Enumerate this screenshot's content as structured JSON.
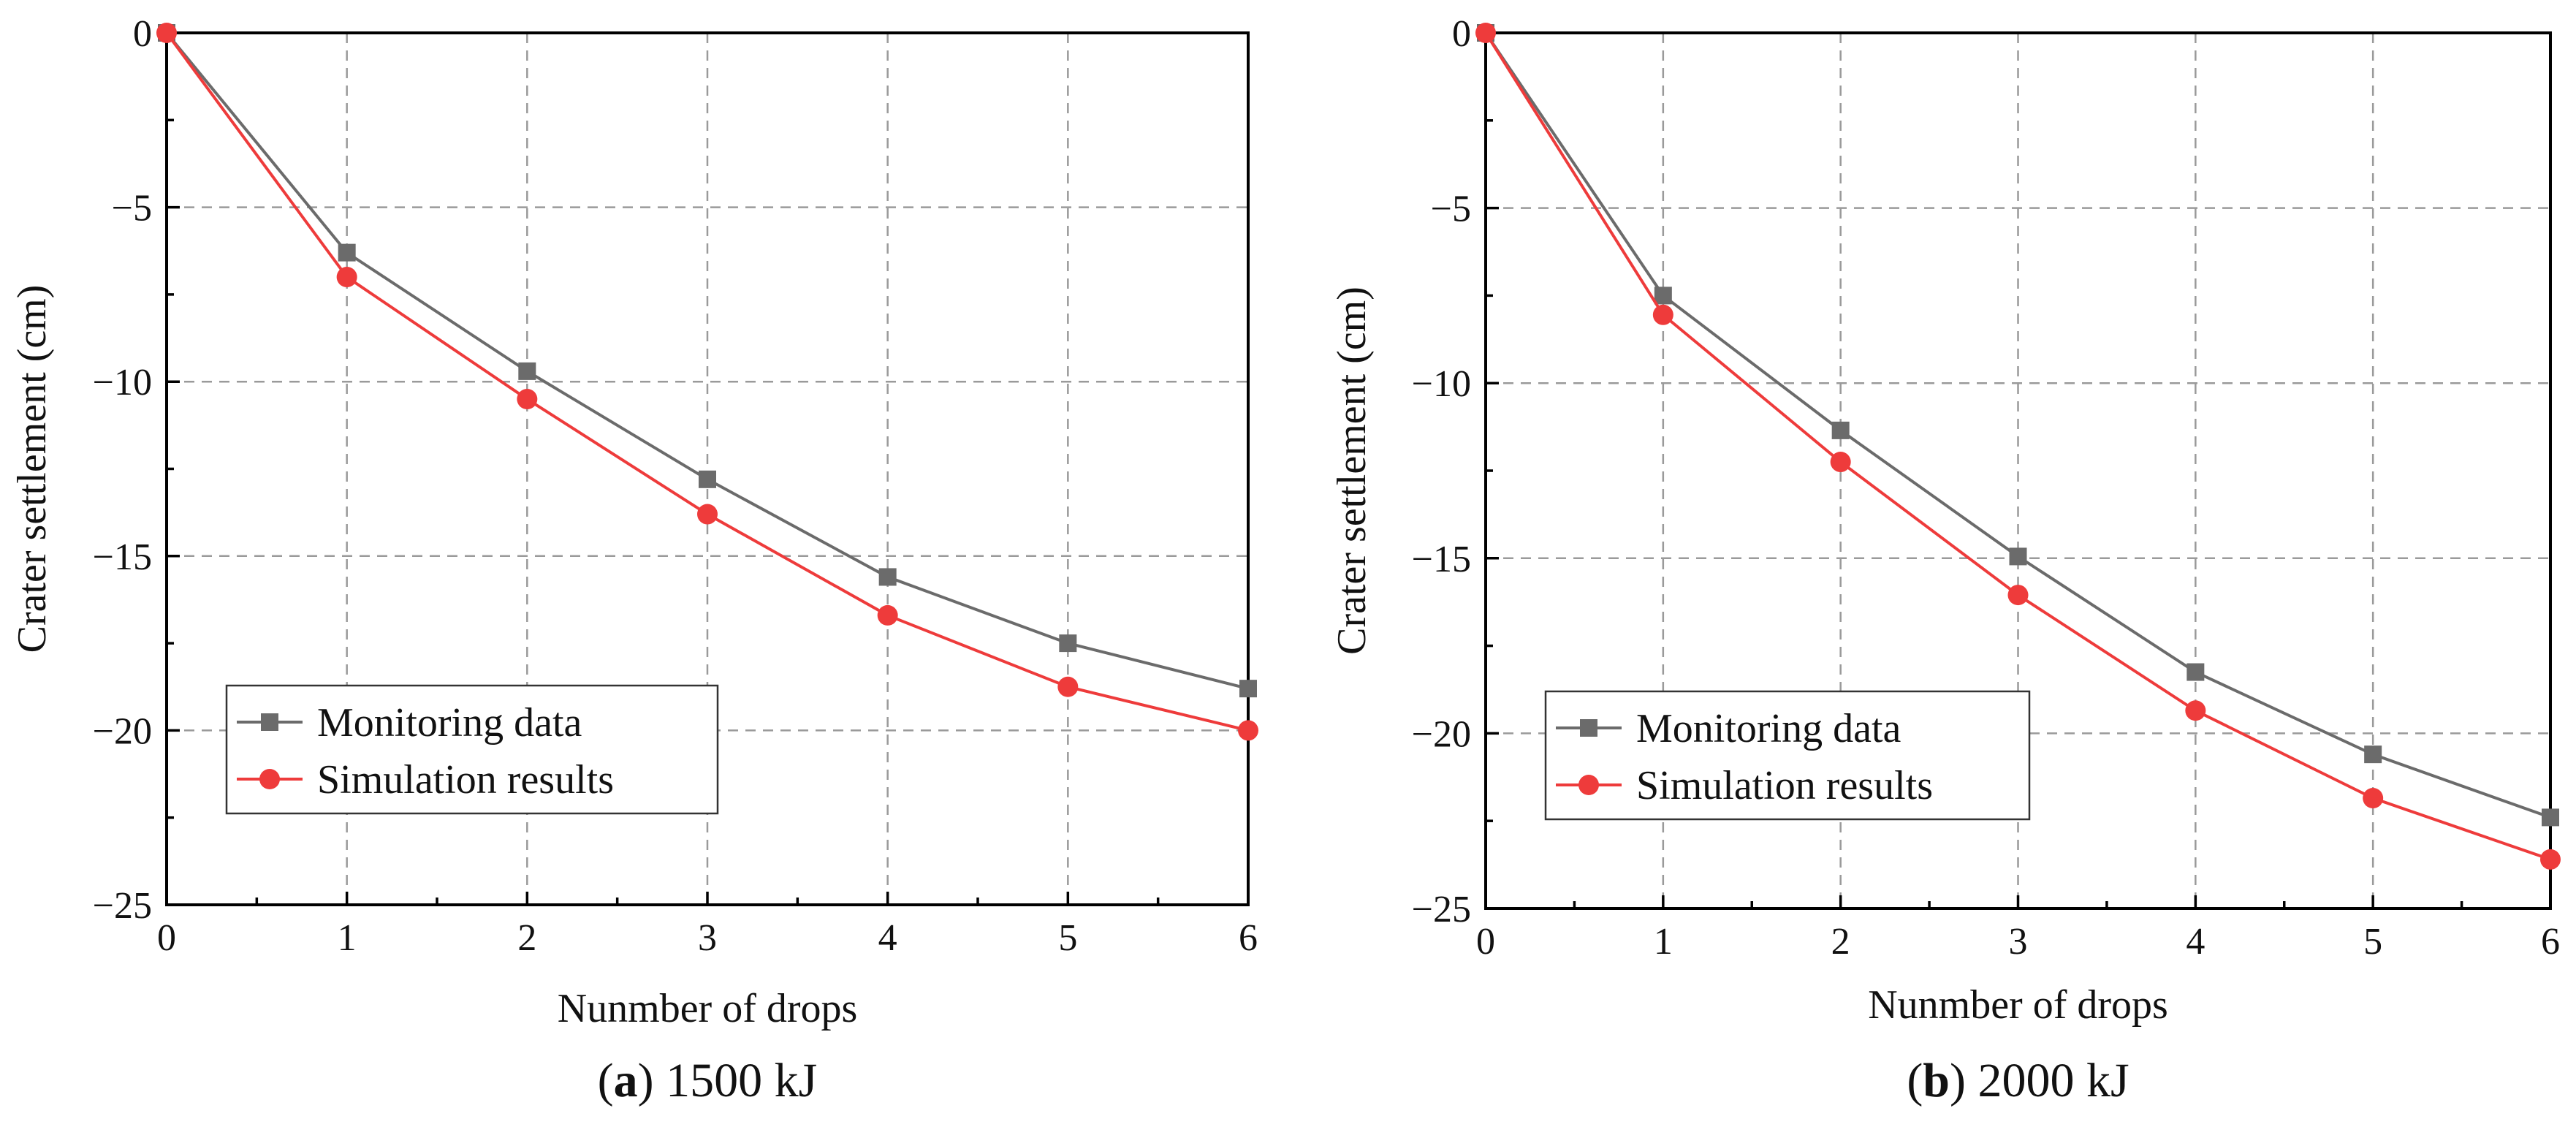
{
  "chart_data": [
    {
      "type": "line",
      "panel_label": "(a)",
      "caption": "1500 kJ",
      "xlabel": "Nunmber of drops",
      "ylabel": "Crater settlement (cm)",
      "x": [
        0,
        1,
        2,
        3,
        4,
        5,
        6
      ],
      "xlim": [
        0,
        6
      ],
      "ylim": [
        -25,
        0
      ],
      "xticks": [
        0,
        1,
        2,
        3,
        4,
        5,
        6
      ],
      "yticks": [
        0,
        -5,
        -10,
        -15,
        -20,
        -25
      ],
      "yticklabels": [
        "0",
        "−5",
        "−10",
        "−15",
        "−20",
        "−25"
      ],
      "grid": true,
      "legend_position": "lower-left",
      "series": [
        {
          "name": "Monitoring data",
          "marker": "square",
          "color": "#6b6b6b",
          "values": [
            0,
            -6.3,
            -9.7,
            -12.8,
            -15.6,
            -17.5,
            -18.8
          ]
        },
        {
          "name": "Simulation results",
          "marker": "circle",
          "color": "#ee3b3b",
          "values": [
            0,
            -7.0,
            -10.5,
            -13.8,
            -16.7,
            -18.75,
            -20.0
          ]
        }
      ]
    },
    {
      "type": "line",
      "panel_label": "(b)",
      "caption": "2000 kJ",
      "xlabel": "Nunmber of drops",
      "ylabel": "Crater settlement (cm)",
      "x": [
        0,
        1,
        2,
        3,
        4,
        5,
        6
      ],
      "xlim": [
        0,
        6
      ],
      "ylim": [
        -25,
        0
      ],
      "xticks": [
        0,
        1,
        2,
        3,
        4,
        5,
        6
      ],
      "yticks": [
        0,
        -5,
        -10,
        -15,
        -20,
        -25
      ],
      "yticklabels": [
        "0",
        "−5",
        "−10",
        "−15",
        "−20",
        "−25"
      ],
      "grid": true,
      "legend_position": "lower-left",
      "series": [
        {
          "name": "Monitoring data",
          "marker": "square",
          "color": "#6b6b6b",
          "values": [
            0,
            -7.5,
            -11.35,
            -14.95,
            -18.25,
            -20.6,
            -22.4
          ]
        },
        {
          "name": "Simulation results",
          "marker": "circle",
          "color": "#ee3b3b",
          "values": [
            0,
            -8.05,
            -12.25,
            -16.05,
            -19.35,
            -21.85,
            -23.6
          ]
        }
      ]
    }
  ]
}
